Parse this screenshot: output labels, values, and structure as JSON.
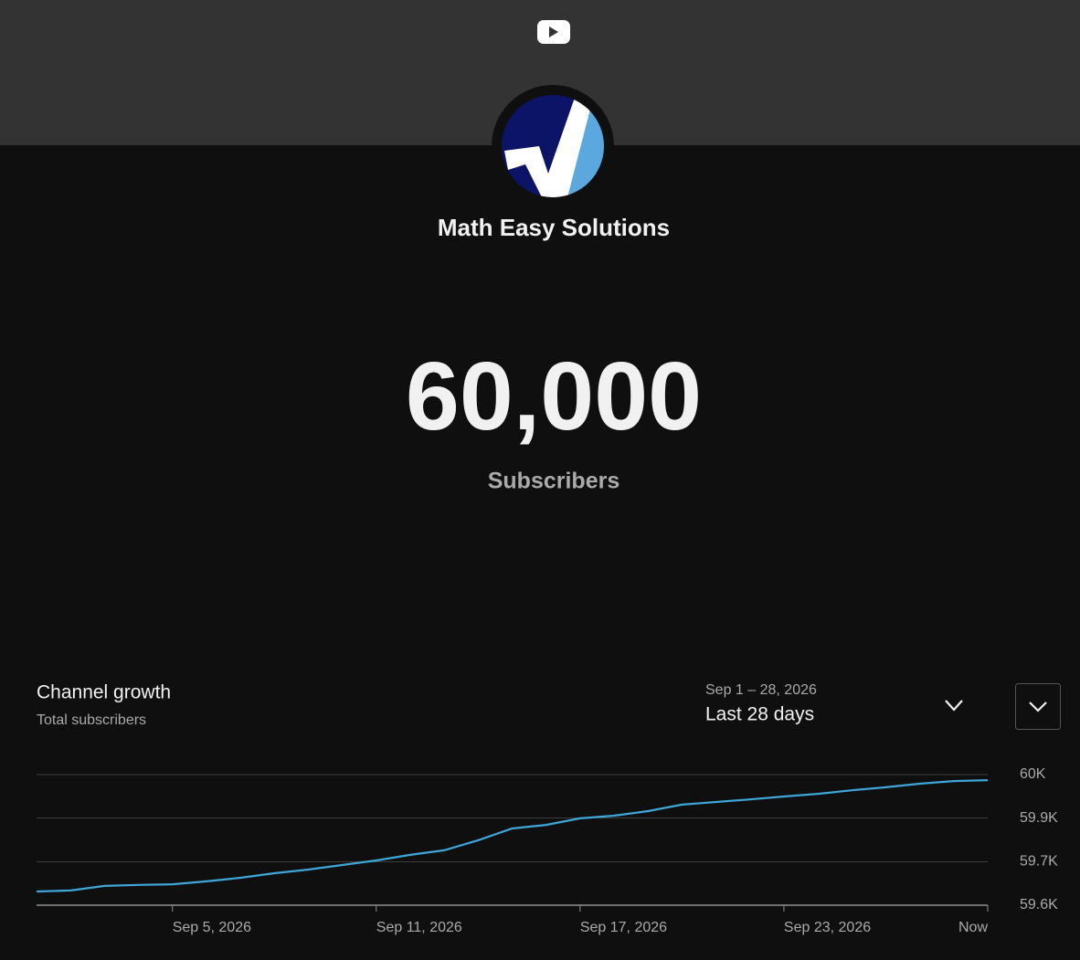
{
  "channel": {
    "name": "Math Easy Solutions",
    "subscriber_count": "60,000",
    "subscriber_label": "Subscribers"
  },
  "growth": {
    "title": "Channel growth",
    "subtitle": "Total subscribers",
    "date_range": "Sep 1 – 28, 2026",
    "period": "Last 28 days"
  },
  "chart_data": {
    "type": "line",
    "color": "#3ea6d8",
    "grid": true,
    "categories": [
      null,
      null,
      null,
      null,
      "Sep 5, 2026",
      null,
      null,
      null,
      null,
      null,
      "Sep 11, 2026",
      null,
      null,
      null,
      null,
      null,
      "Sep 17, 2026",
      null,
      null,
      null,
      null,
      null,
      "Sep 23, 2026",
      null,
      null,
      null,
      null,
      null,
      "Now"
    ],
    "values": [
      59642,
      59645,
      59659,
      59662,
      59664,
      59673,
      59684,
      59698,
      59709,
      59723,
      59737,
      59754,
      59768,
      59799,
      59835,
      59846,
      59866,
      59874,
      59888,
      59908,
      59916,
      59924,
      59933,
      59941,
      59952,
      59961,
      59972,
      59980,
      59983
    ],
    "ylim": [
      59600,
      60000
    ],
    "yticks": [
      {
        "value": 59600,
        "label": "59.6K"
      },
      {
        "value": 59733,
        "label": "59.7K"
      },
      {
        "value": 59867,
        "label": "59.9K"
      },
      {
        "value": 60000,
        "label": "60K"
      }
    ]
  }
}
